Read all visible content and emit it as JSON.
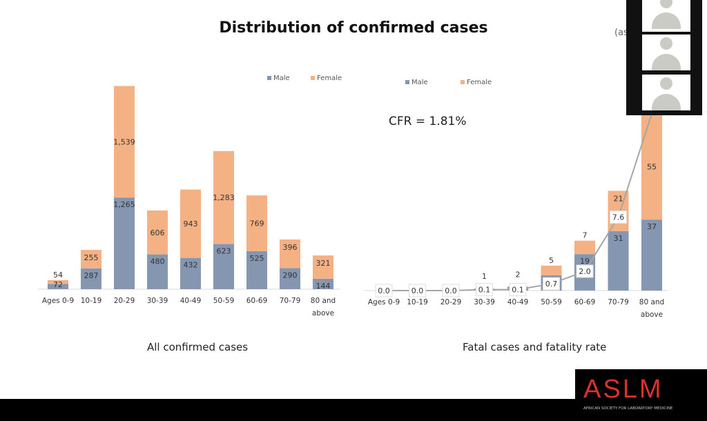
{
  "slide": {
    "title": "Distribution of confirmed cases",
    "as_of_fragment": "(as",
    "cfr": "CFR = 1.81%"
  },
  "colors": {
    "male": "#8496b0",
    "female": "#f4b183",
    "line": "#a5a5a5"
  },
  "chart_data": [
    {
      "type": "bar",
      "stacked": true,
      "caption": "All confirmed cases",
      "categories": [
        "Ages 0-9",
        "10-19",
        "20-29",
        "30-39",
        "40-49",
        "50-59",
        "60-69",
        "70-79",
        "80 and above"
      ],
      "series": [
        {
          "name": "Male",
          "values": [
            72,
            287,
            1265,
            480,
            432,
            623,
            525,
            290,
            144
          ],
          "labels": [
            "72",
            "287",
            "1,265",
            "480",
            "432",
            "623",
            "525",
            "290",
            "144"
          ]
        },
        {
          "name": "Female",
          "values": [
            54,
            255,
            1539,
            606,
            943,
            1283,
            769,
            396,
            321
          ],
          "labels": [
            "54",
            "255",
            "1,539",
            "606",
            "943",
            "1,283",
            "769",
            "396",
            "321"
          ]
        }
      ],
      "legend": "top-right"
    },
    {
      "type": "bar",
      "stacked": true,
      "caption": "Fatal cases and fatality rate",
      "categories": [
        "Ages 0-9",
        "10-19",
        "20-29",
        "30-39",
        "40-49",
        "50-59",
        "60-69",
        "70-79",
        "80 and above"
      ],
      "series": [
        {
          "name": "Male",
          "values": [
            0,
            0,
            0,
            1,
            2,
            8,
            19,
            31,
            37
          ],
          "labels": [
            "",
            "",
            "",
            "1",
            "2",
            "",
            "19",
            "31",
            "37"
          ]
        },
        {
          "name": "Female",
          "values": [
            0,
            0,
            0,
            0,
            0,
            5,
            7,
            21,
            55
          ],
          "labels": [
            "",
            "",
            "",
            "",
            "",
            "5",
            "7",
            "21",
            "55"
          ]
        }
      ],
      "line": {
        "values": [
          0.0,
          0.0,
          0.0,
          0.1,
          0.1,
          0.7,
          2.0,
          7.6,
          18.3
        ],
        "labels": [
          "0.0",
          "0.0",
          "0.0",
          "0.1",
          "0.1",
          "0.7",
          "2.0",
          "7.6",
          ""
        ]
      },
      "legend": "top"
    }
  ],
  "logo": {
    "text": "ASLM",
    "subtitle": "AFRICAN SOCIETY FOR LABORATORY MEDICINE"
  }
}
